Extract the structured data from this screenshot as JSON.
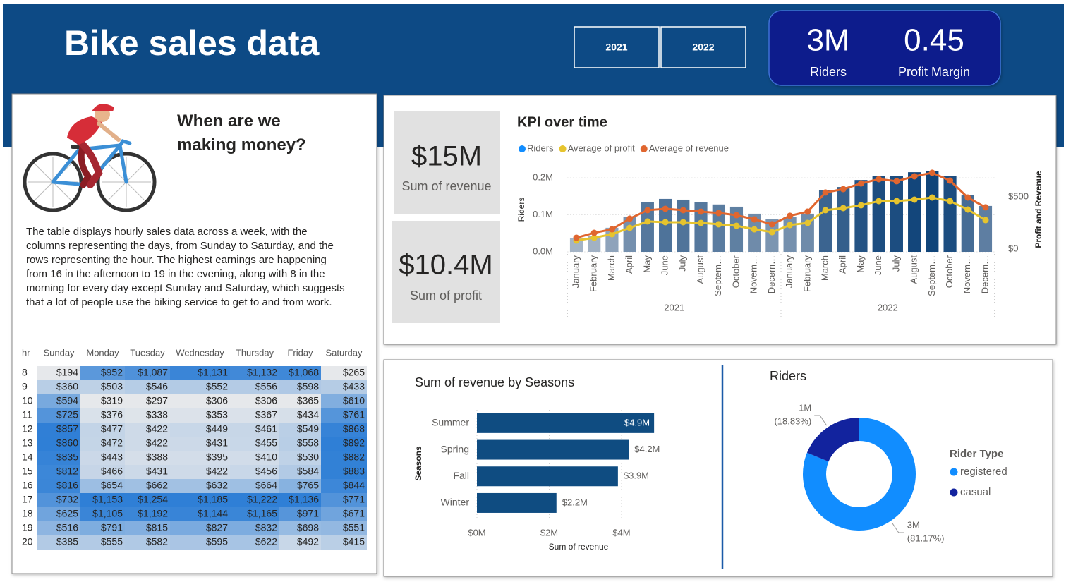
{
  "header": {
    "title": "Bike sales data",
    "years": [
      "2021",
      "2022"
    ]
  },
  "kpis": [
    {
      "value": "3M",
      "label": "Riders"
    },
    {
      "value": "0.45",
      "label": "Profit Margin"
    }
  ],
  "cards": [
    {
      "value": "$15M",
      "label": "Sum of revenue"
    },
    {
      "value": "$10.4M",
      "label": "Sum of profit"
    }
  ],
  "story": {
    "title": "When are we making money?",
    "text": "The table displays hourly sales data across a week, with the columns representing the days, from Sunday to Saturday, and the rows representing the hour. The highest earnings are happening from 16 in the afternoon to 19 in the evening, along with 8 in the morning for every day except Sunday and Saturday, which suggests that a lot of people use the biking service to get to and from work."
  },
  "table": {
    "columns": [
      "hr",
      "Sunday",
      "Monday",
      "Tuesday",
      "Wednesday",
      "Thursday",
      "Friday",
      "Saturday"
    ],
    "rows": [
      [
        8,
        "$194",
        "$952",
        "$1,087",
        "$1,131",
        "$1,132",
        "$1,068",
        "$265"
      ],
      [
        9,
        "$360",
        "$503",
        "$546",
        "$552",
        "$556",
        "$598",
        "$433"
      ],
      [
        10,
        "$594",
        "$319",
        "$297",
        "$306",
        "$306",
        "$365",
        "$610"
      ],
      [
        11,
        "$725",
        "$376",
        "$338",
        "$353",
        "$367",
        "$434",
        "$761"
      ],
      [
        12,
        "$857",
        "$477",
        "$422",
        "$449",
        "$461",
        "$549",
        "$868"
      ],
      [
        13,
        "$860",
        "$472",
        "$422",
        "$431",
        "$455",
        "$558",
        "$892"
      ],
      [
        14,
        "$835",
        "$443",
        "$388",
        "$395",
        "$410",
        "$530",
        "$882"
      ],
      [
        15,
        "$812",
        "$466",
        "$431",
        "$422",
        "$456",
        "$584",
        "$883"
      ],
      [
        16,
        "$816",
        "$654",
        "$662",
        "$632",
        "$664",
        "$765",
        "$844"
      ],
      [
        17,
        "$732",
        "$1,153",
        "$1,254",
        "$1,185",
        "$1,222",
        "$1,136",
        "$771"
      ],
      [
        18,
        "$625",
        "$1,105",
        "$1,192",
        "$1,144",
        "$1,165",
        "$971",
        "$671"
      ],
      [
        19,
        "$516",
        "$791",
        "$815",
        "$827",
        "$832",
        "$698",
        "$551"
      ],
      [
        20,
        "$385",
        "$555",
        "$582",
        "$595",
        "$622",
        "$492",
        "$415"
      ]
    ],
    "heat_colors": [
      "#e6e8eb",
      "#2f7fd6"
    ]
  },
  "chart_data": [
    {
      "type": "combo",
      "title": "KPI over time",
      "categories": [
        "January",
        "February",
        "March",
        "April",
        "May",
        "June",
        "July",
        "August",
        "Septem…",
        "October",
        "Novem…",
        "Decem…",
        "January",
        "February",
        "March",
        "April",
        "May",
        "June",
        "July",
        "August",
        "Septem…",
        "October",
        "Novem…",
        "Decem…"
      ],
      "x_groups": [
        "2021",
        "2022"
      ],
      "ylabel": "Riders",
      "y2label": "Profit and Revenue",
      "ylim": [
        0,
        220000
      ],
      "yticks": [
        {
          "value": 0,
          "label": "0.0M"
        },
        {
          "value": 100000,
          "label": "0.1M"
        },
        {
          "value": 200000,
          "label": "0.2M"
        }
      ],
      "y2lim": [
        0,
        780
      ],
      "y2ticks": [
        {
          "value": 0,
          "label": "$0"
        },
        {
          "value": 500,
          "label": "$500"
        }
      ],
      "grid": true,
      "series": [
        {
          "name": "Riders",
          "kind": "bar",
          "color": "#118DFF",
          "shade": [
            "#c3cbd6",
            "#0f4379"
          ],
          "values": [
            38000,
            42000,
            65000,
            95000,
            135000,
            143000,
            141000,
            135000,
            128000,
            122000,
            103000,
            88000,
            95000,
            103000,
            166000,
            175000,
            194000,
            204000,
            204000,
            215000,
            219000,
            204000,
            154000,
            124000
          ]
        },
        {
          "name": "Average of profit",
          "kind": "line",
          "axis": "y2",
          "color": "#E6C42E",
          "values": [
            108,
            135,
            169,
            230,
            291,
            284,
            284,
            277,
            264,
            250,
            216,
            189,
            257,
            277,
            399,
            419,
            446,
            486,
            486,
            500,
            520,
            486,
            405,
            304
          ]
        },
        {
          "name": "Average of revenue",
          "kind": "line",
          "axis": "y2",
          "color": "#E0662F",
          "values": [
            135,
            182,
            216,
            318,
            399,
            412,
            399,
            385,
            372,
            351,
            311,
            264,
            345,
            385,
            568,
            601,
            655,
            696,
            676,
            723,
            757,
            682,
            520,
            426
          ]
        }
      ]
    },
    {
      "type": "hbar",
      "title": "Sum of revenue by Seasons",
      "categories": [
        "Summer",
        "Spring",
        "Fall",
        "Winter"
      ],
      "values": [
        4900000,
        4200000,
        3900000,
        2200000
      ],
      "value_labels": [
        "$4.9M",
        "$4.2M",
        "$3.9M",
        "$2.2M"
      ],
      "color": "#0f4c81",
      "xlabel": "Sum of revenue",
      "ylabel": "Seasons",
      "xlim": [
        0,
        5000000
      ],
      "xticks": [
        {
          "value": 0,
          "label": "$0M"
        },
        {
          "value": 2000000,
          "label": "$2M"
        },
        {
          "value": 4000000,
          "label": "$4M"
        }
      ],
      "grid": true
    },
    {
      "type": "donut",
      "title": "Riders",
      "legend_title": "Rider Type",
      "legend": "right",
      "categories": [
        "registered",
        "casual"
      ],
      "colors": [
        "#118DFF",
        "#12239E"
      ],
      "values": [
        2672000,
        620000
      ],
      "value_labels": [
        "3M",
        "1M"
      ],
      "percent_labels": [
        "(81.17%)",
        "(18.83%)"
      ]
    }
  ]
}
